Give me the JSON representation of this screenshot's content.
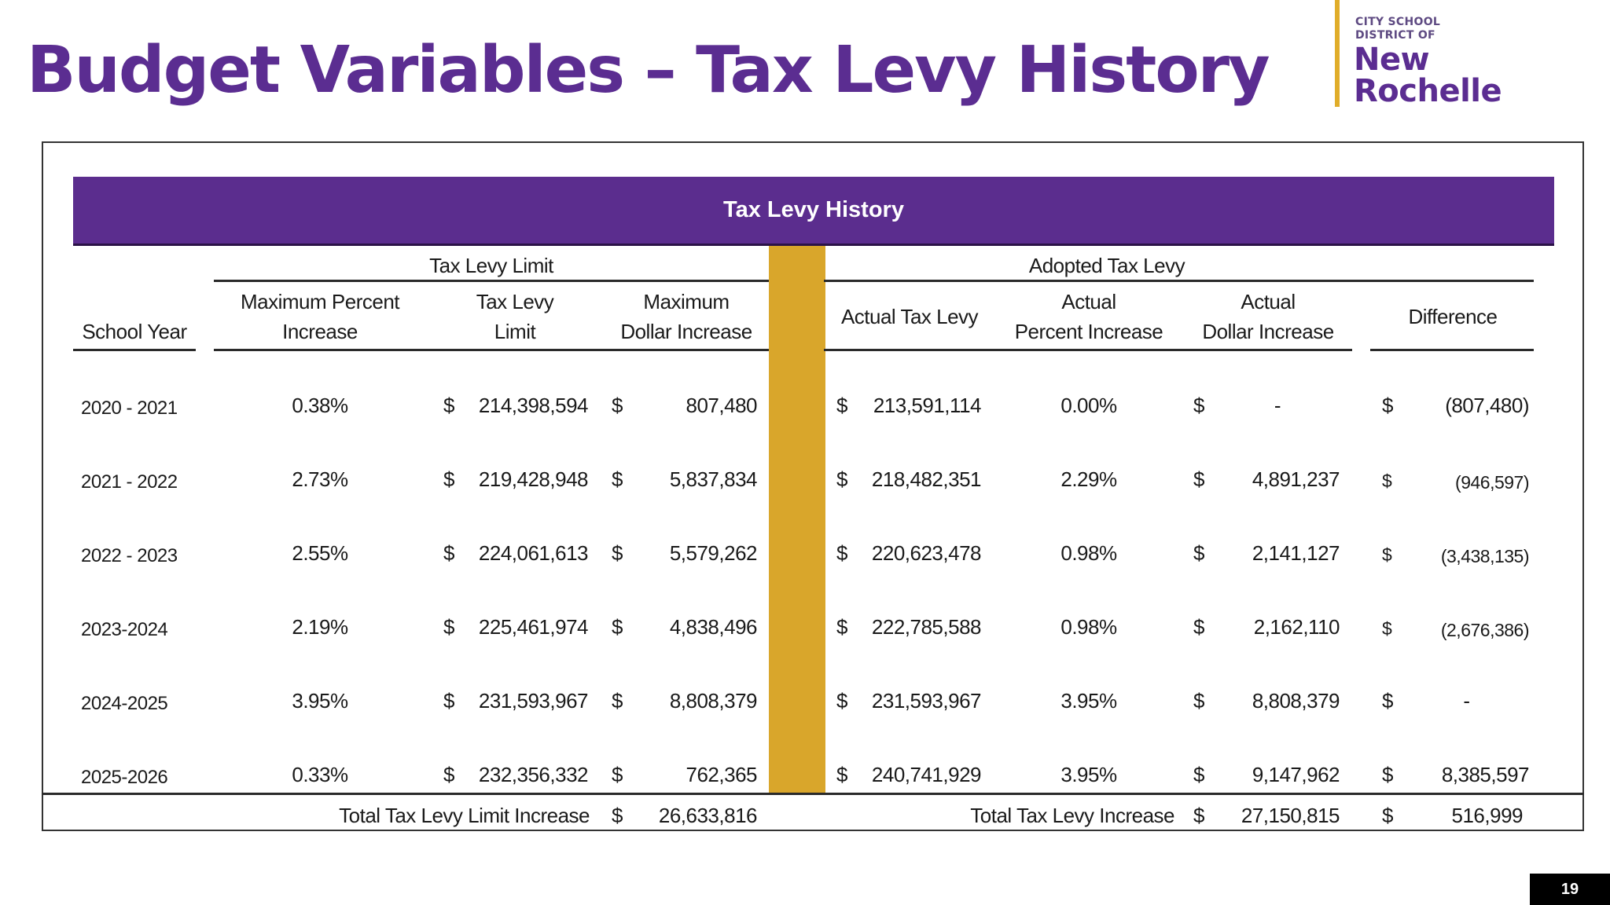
{
  "slide": {
    "title": "Budget Variables – Tax Levy History",
    "page_number": "19"
  },
  "logo": {
    "line1": "CITY SCHOOL",
    "line2": "DISTRICT OF",
    "line3": "New",
    "line4": "Rochelle"
  },
  "colors": {
    "brand_purple": "#5b2d91",
    "accent_gold": "#d9a62b"
  },
  "table": {
    "title": "Tax Levy History",
    "group_limit": "Tax Levy Limit",
    "group_adopted": "Adopted Tax Levy",
    "headers": {
      "school_year": "School Year",
      "max_pct_1": "Maximum Percent",
      "max_pct_2": "Increase",
      "limit_1": "Tax Levy",
      "limit_2": "Limit",
      "max_dollar_1": "Maximum",
      "max_dollar_2": "Dollar Increase",
      "actual_levy": "Actual Tax Levy",
      "actual_pct_1": "Actual",
      "actual_pct_2": "Percent Increase",
      "actual_dollar_1": "Actual",
      "actual_dollar_2": "Dollar Increase",
      "difference": "Difference"
    },
    "currency": "$",
    "rows": [
      {
        "year": "2020 - 2021",
        "max_pct": "0.38%",
        "limit": "214,398,594",
        "max_dollar": "807,480",
        "actual_levy": "213,591,114",
        "actual_pct": "0.00%",
        "actual_dollar": "-",
        "difference": "(807,480)"
      },
      {
        "year": "2021 - 2022",
        "max_pct": "2.73%",
        "limit": "219,428,948",
        "max_dollar": "5,837,834",
        "actual_levy": "218,482,351",
        "actual_pct": "2.29%",
        "actual_dollar": "4,891,237",
        "difference": "(946,597)"
      },
      {
        "year": "2022 - 2023",
        "max_pct": "2.55%",
        "limit": "224,061,613",
        "max_dollar": "5,579,262",
        "actual_levy": "220,623,478",
        "actual_pct": "0.98%",
        "actual_dollar": "2,141,127",
        "difference": "(3,438,135)"
      },
      {
        "year": "2023-2024",
        "max_pct": "2.19%",
        "limit": "225,461,974",
        "max_dollar": "4,838,496",
        "actual_levy": "222,785,588",
        "actual_pct": "0.98%",
        "actual_dollar": "2,162,110",
        "difference": "(2,676,386)"
      },
      {
        "year": "2024-2025",
        "max_pct": "3.95%",
        "limit": "231,593,967",
        "max_dollar": "8,808,379",
        "actual_levy": "231,593,967",
        "actual_pct": "3.95%",
        "actual_dollar": "8,808,379",
        "difference": "-"
      },
      {
        "year": "2025-2026",
        "max_pct": "0.33%",
        "limit": "232,356,332",
        "max_dollar": "762,365",
        "actual_levy": "240,741,929",
        "actual_pct": "3.95%",
        "actual_dollar": "9,147,962",
        "difference": "8,385,597"
      }
    ],
    "totals": {
      "limit_label": "Total Tax Levy Limit Increase",
      "limit_value": "26,633,816",
      "levy_label": "Total Tax Levy Increase",
      "levy_value": "27,150,815",
      "difference_value": "516,999"
    }
  }
}
